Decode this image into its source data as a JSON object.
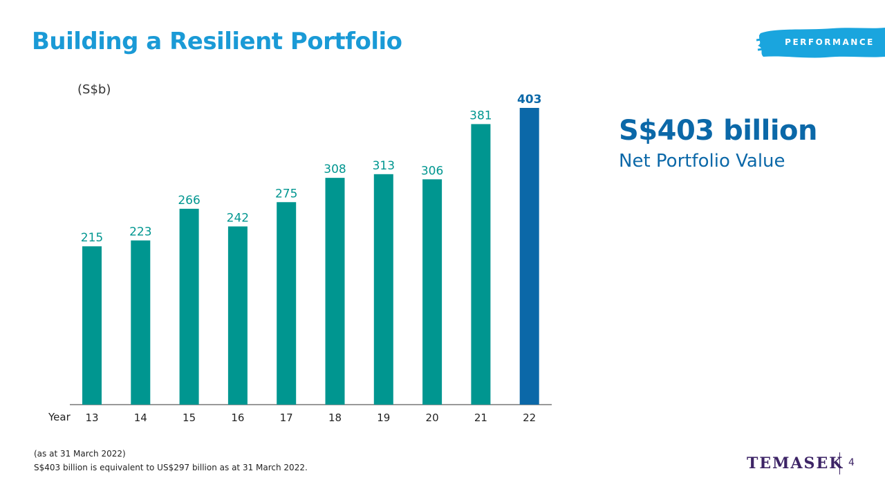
{
  "slide": {
    "title": "Building a Resilient Portfolio",
    "tag": "PERFORMANCE",
    "page_number": "4"
  },
  "kpi": {
    "value": "S$403 billion",
    "label": "Net Portfolio Value"
  },
  "footnotes": {
    "line1": "(as at 31 March 2022)",
    "line2": "S$403 billion is equivalent to US$297 billion as at 31 March 2022."
  },
  "logo": {
    "text": "TEMASEK"
  },
  "colors": {
    "title": "#1a9ad6",
    "bar": "#009690",
    "bar_highlight": "#0b68a8",
    "tag_brush": "#1aa5de",
    "logo": "#3d2466"
  },
  "chart_data": {
    "type": "bar",
    "unit_label": "(S$b)",
    "xlabel": "Year",
    "categories": [
      "13",
      "14",
      "15",
      "16",
      "17",
      "18",
      "19",
      "20",
      "21",
      "22"
    ],
    "values": [
      215,
      223,
      266,
      242,
      275,
      308,
      313,
      306,
      381,
      403
    ],
    "highlight_index": 9,
    "ylim": [
      0,
      403
    ],
    "grid": false
  }
}
